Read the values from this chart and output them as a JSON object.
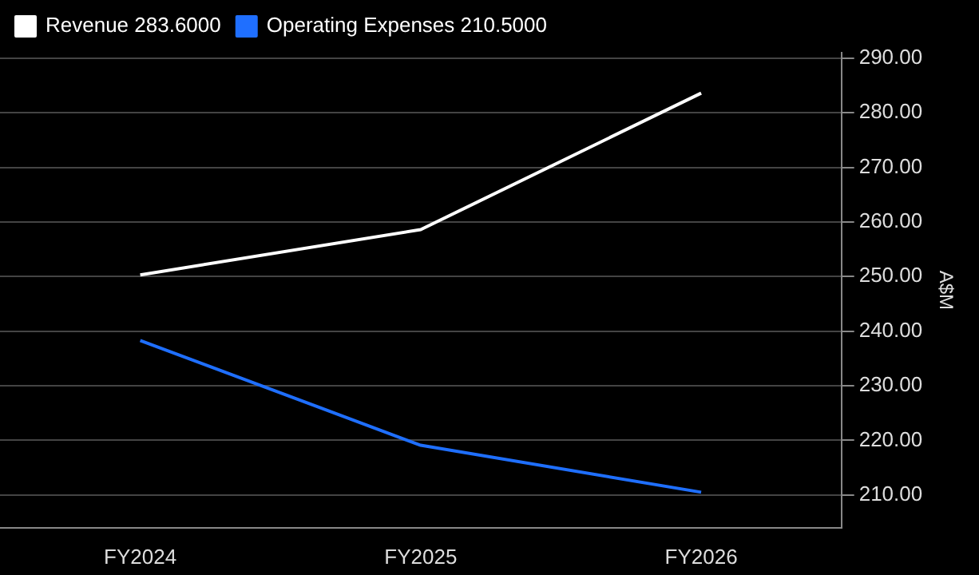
{
  "chart_data": {
    "type": "line",
    "categories": [
      "FY2024",
      "FY2025",
      "FY2026"
    ],
    "series": [
      {
        "name": "Revenue 283.6000",
        "color": "#ffffff",
        "values": [
          250.3,
          258.6,
          283.6
        ]
      },
      {
        "name": "Operating Expenses 210.5000",
        "color": "#1f6fff",
        "values": [
          238.3,
          219.1,
          210.5
        ]
      }
    ],
    "ylabel": "A$M",
    "ylim": [
      204,
      291
    ],
    "yticks": [
      {
        "value": 210,
        "label": "210.00"
      },
      {
        "value": 220,
        "label": "220.00"
      },
      {
        "value": 230,
        "label": "230.00"
      },
      {
        "value": 240,
        "label": "240.00"
      },
      {
        "value": 250,
        "label": "250.00"
      },
      {
        "value": 260,
        "label": "260.00"
      },
      {
        "value": 270,
        "label": "270.00"
      },
      {
        "value": 280,
        "label": "280.00"
      },
      {
        "value": 290,
        "label": "290.00"
      }
    ],
    "grid": "y",
    "legend": "top left",
    "marker": "none",
    "line_style": "solid"
  }
}
